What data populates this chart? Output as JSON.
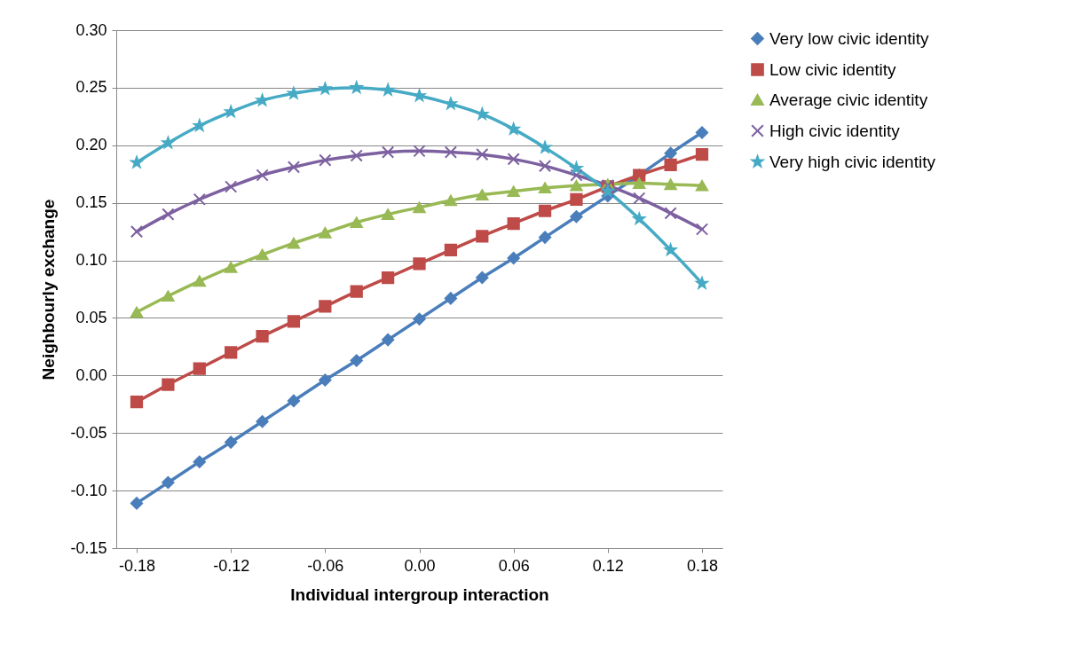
{
  "chart_data": {
    "type": "line",
    "xlabel": "Individual intergroup interaction",
    "ylabel": "Neighbourly exchange",
    "x": [
      -0.18,
      -0.16,
      -0.14,
      -0.12,
      -0.1,
      -0.08,
      -0.06,
      -0.04,
      -0.02,
      0.0,
      0.02,
      0.04,
      0.06,
      0.08,
      0.1,
      0.12,
      0.14,
      0.16,
      0.18
    ],
    "series": [
      {
        "name": "Very low civic identity",
        "color": "#4a7ebb",
        "marker": "diamond",
        "values": [
          -0.111,
          -0.093,
          -0.075,
          -0.058,
          -0.04,
          -0.022,
          -0.004,
          0.013,
          0.031,
          0.049,
          0.067,
          0.085,
          0.102,
          0.12,
          0.138,
          0.156,
          0.174,
          0.193,
          0.211
        ]
      },
      {
        "name": "Low civic identity",
        "color": "#be4b48",
        "marker": "square",
        "values": [
          -0.023,
          -0.008,
          0.006,
          0.02,
          0.034,
          0.047,
          0.06,
          0.073,
          0.085,
          0.097,
          0.109,
          0.121,
          0.132,
          0.143,
          0.153,
          0.164,
          0.174,
          0.183,
          0.192
        ]
      },
      {
        "name": "Average civic identity",
        "color": "#98b954",
        "marker": "triangle",
        "values": [
          0.055,
          0.069,
          0.082,
          0.094,
          0.105,
          0.115,
          0.124,
          0.133,
          0.14,
          0.146,
          0.152,
          0.157,
          0.16,
          0.163,
          0.165,
          0.166,
          0.167,
          0.166,
          0.165
        ]
      },
      {
        "name": "High civic identity",
        "color": "#7d60a0",
        "marker": "cross",
        "values": [
          0.125,
          0.14,
          0.153,
          0.164,
          0.174,
          0.181,
          0.187,
          0.191,
          0.194,
          0.195,
          0.194,
          0.192,
          0.188,
          0.182,
          0.174,
          0.165,
          0.154,
          0.141,
          0.127
        ]
      },
      {
        "name": "Very high civic identity",
        "color": "#46aac5",
        "marker": "star",
        "values": [
          0.185,
          0.202,
          0.217,
          0.229,
          0.239,
          0.245,
          0.249,
          0.25,
          0.248,
          0.243,
          0.236,
          0.227,
          0.214,
          0.198,
          0.18,
          0.16,
          0.136,
          0.109,
          0.08
        ]
      }
    ],
    "xlim": [
      -0.193,
      0.193
    ],
    "xticks": [
      {
        "value": -0.18,
        "label": "-0.18"
      },
      {
        "value": -0.12,
        "label": "-0.12"
      },
      {
        "value": -0.06,
        "label": "-0.06"
      },
      {
        "value": 0,
        "label": "0.00"
      },
      {
        "value": 0.06,
        "label": "0.06"
      },
      {
        "value": 0.12,
        "label": "0.12"
      },
      {
        "value": 0.18,
        "label": "0.18"
      }
    ],
    "ylim": [
      -0.15,
      0.3
    ],
    "yticks": [
      {
        "value": -0.15,
        "label": "-0.15"
      },
      {
        "value": -0.1,
        "label": "-0.10"
      },
      {
        "value": -0.05,
        "label": "-0.05"
      },
      {
        "value": 0,
        "label": "0.00"
      },
      {
        "value": 0.05,
        "label": "0.05"
      },
      {
        "value": 0.1,
        "label": "0.10"
      },
      {
        "value": 0.15,
        "label": "0.15"
      },
      {
        "value": 0.2,
        "label": "0.20"
      },
      {
        "value": 0.25,
        "label": "0.25"
      },
      {
        "value": 0.3,
        "label": "0.30"
      }
    ],
    "grid": "y",
    "legend": "right",
    "line_style": "solid"
  }
}
